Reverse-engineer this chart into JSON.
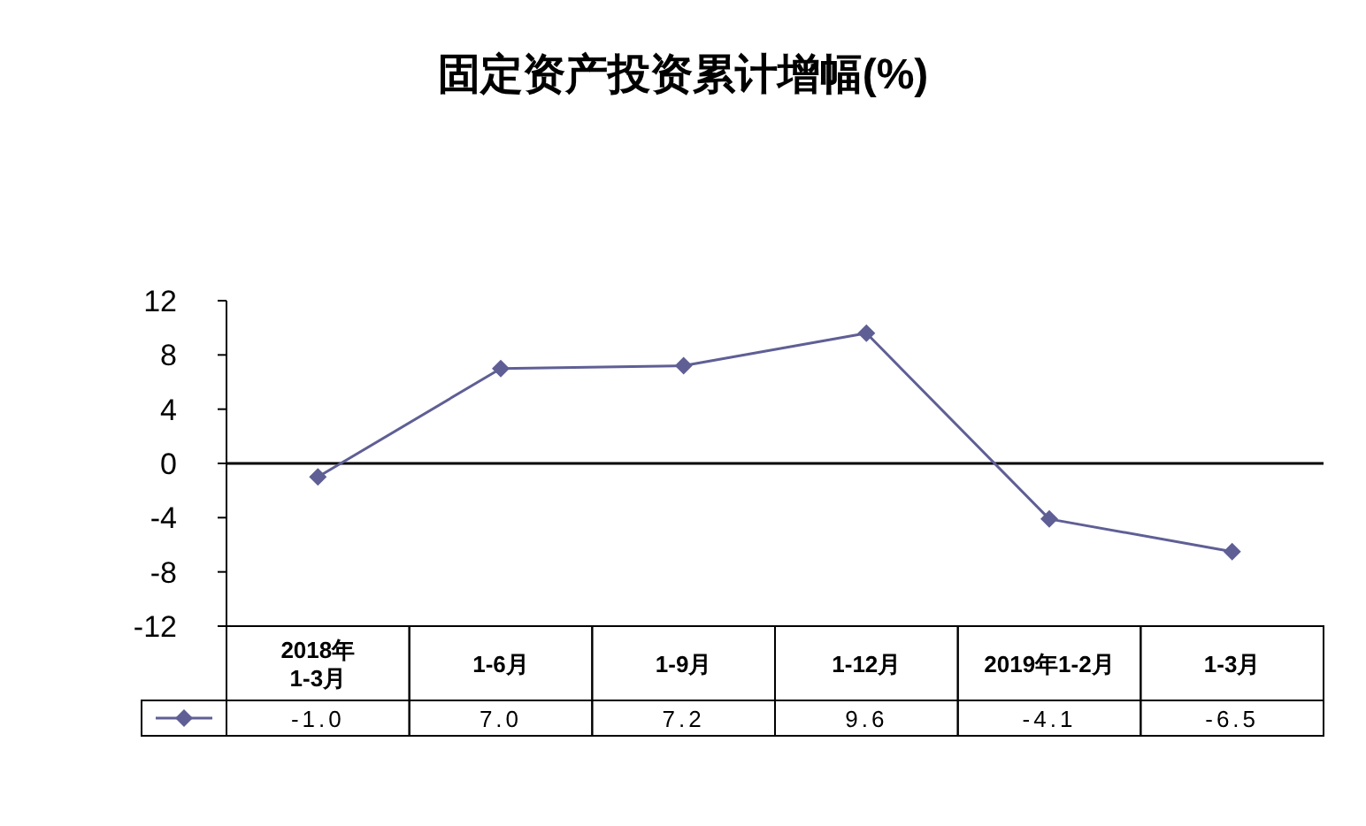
{
  "chart_data": {
    "type": "line",
    "title": "固定资产投资累计增幅(%)",
    "categories": [
      "2018年 1-3月",
      "1-6月",
      "1-9月",
      "1-12月",
      "2019年1-2月",
      "1-3月"
    ],
    "series": [
      {
        "color": "#5f5f96",
        "values": [
          -1.0,
          7.0,
          7.2,
          9.6,
          -4.1,
          -6.5
        ],
        "value_labels": [
          "-1.0",
          "7.0",
          "7.2",
          "9.6",
          "-4.1",
          "-6.5"
        ]
      }
    ],
    "ylim": [
      -12,
      12
    ],
    "yticks": [
      12,
      8,
      4,
      0,
      -4,
      -8,
      -12
    ],
    "ref_lines": [
      {
        "axis": "y",
        "value": 0,
        "color": "#000000"
      }
    ],
    "marker": "diamond",
    "grid": false
  }
}
